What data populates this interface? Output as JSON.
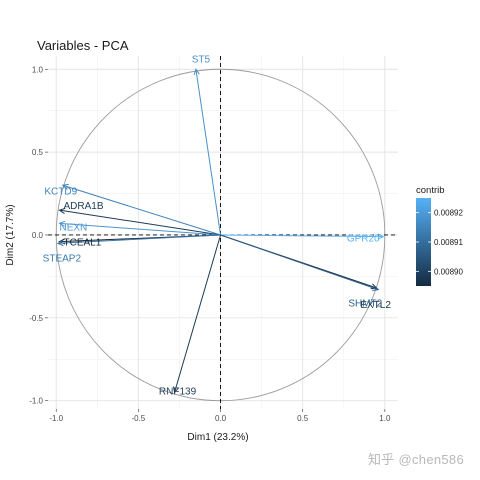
{
  "chart_data": {
    "type": "scatter",
    "subtype": "pca-correlation-circle",
    "title": "Variables - PCA",
    "xlabel": "Dim1 (23.2%)",
    "ylabel": "Dim2 (17.7%)",
    "xlim": [
      -1.05,
      1.08
    ],
    "ylim": [
      -1.05,
      1.08
    ],
    "x_ticks": [
      -1.0,
      -0.5,
      0.0,
      0.5,
      1.0
    ],
    "x_tick_labels": [
      "-1.0",
      "-0.5",
      "0.0",
      "0.5",
      "1.0"
    ],
    "y_ticks": [
      -1.0,
      -0.5,
      0.0,
      0.5,
      1.0
    ],
    "y_tick_labels": [
      "-1.0",
      "-0.5",
      "0.0",
      "0.5",
      "1.0"
    ],
    "grid": true,
    "unit_circle": true,
    "legend": {
      "title": "contrib",
      "position": "right",
      "breaks": [
        "0.00892",
        "0.00891",
        "0.00890"
      ],
      "range": [
        0.008895,
        0.008925
      ],
      "low_color": "#132b43",
      "high_color": "#56b1f7"
    },
    "variables": [
      {
        "name": "ST5",
        "x": -0.15,
        "y": 1.0,
        "contrib": 0.008925,
        "color": "#4a90c8"
      },
      {
        "name": "KCTD9",
        "x": -0.96,
        "y": 0.3,
        "contrib": 0.00892,
        "color": "#3f83bd"
      },
      {
        "name": "ADRA1B",
        "x": -0.98,
        "y": 0.15,
        "contrib": 0.008898,
        "color": "#1d3b56"
      },
      {
        "name": "NEXN",
        "x": -0.98,
        "y": 0.07,
        "contrib": 0.00892,
        "color": "#4a95d2"
      },
      {
        "name": "TCEAL1",
        "x": -0.98,
        "y": -0.04,
        "contrib": 0.008895,
        "color": "#15283b"
      },
      {
        "name": "STEAP2",
        "x": -0.99,
        "y": -0.05,
        "contrib": 0.008912,
        "color": "#3a78ac"
      },
      {
        "name": "GPR20",
        "x": 0.99,
        "y": -0.01,
        "contrib": 0.008925,
        "color": "#57b2f7"
      },
      {
        "name": "EXTL2",
        "x": 0.95,
        "y": -0.32,
        "contrib": 0.008896,
        "color": "#1a3049"
      },
      {
        "name": "SHMT2",
        "x": 0.96,
        "y": -0.33,
        "contrib": 0.008906,
        "color": "#2d5f8a"
      },
      {
        "name": "RNF139",
        "x": -0.28,
        "y": -0.95,
        "contrib": 0.008898,
        "color": "#1d3b56"
      }
    ]
  },
  "watermark": "知乎 @chen586"
}
